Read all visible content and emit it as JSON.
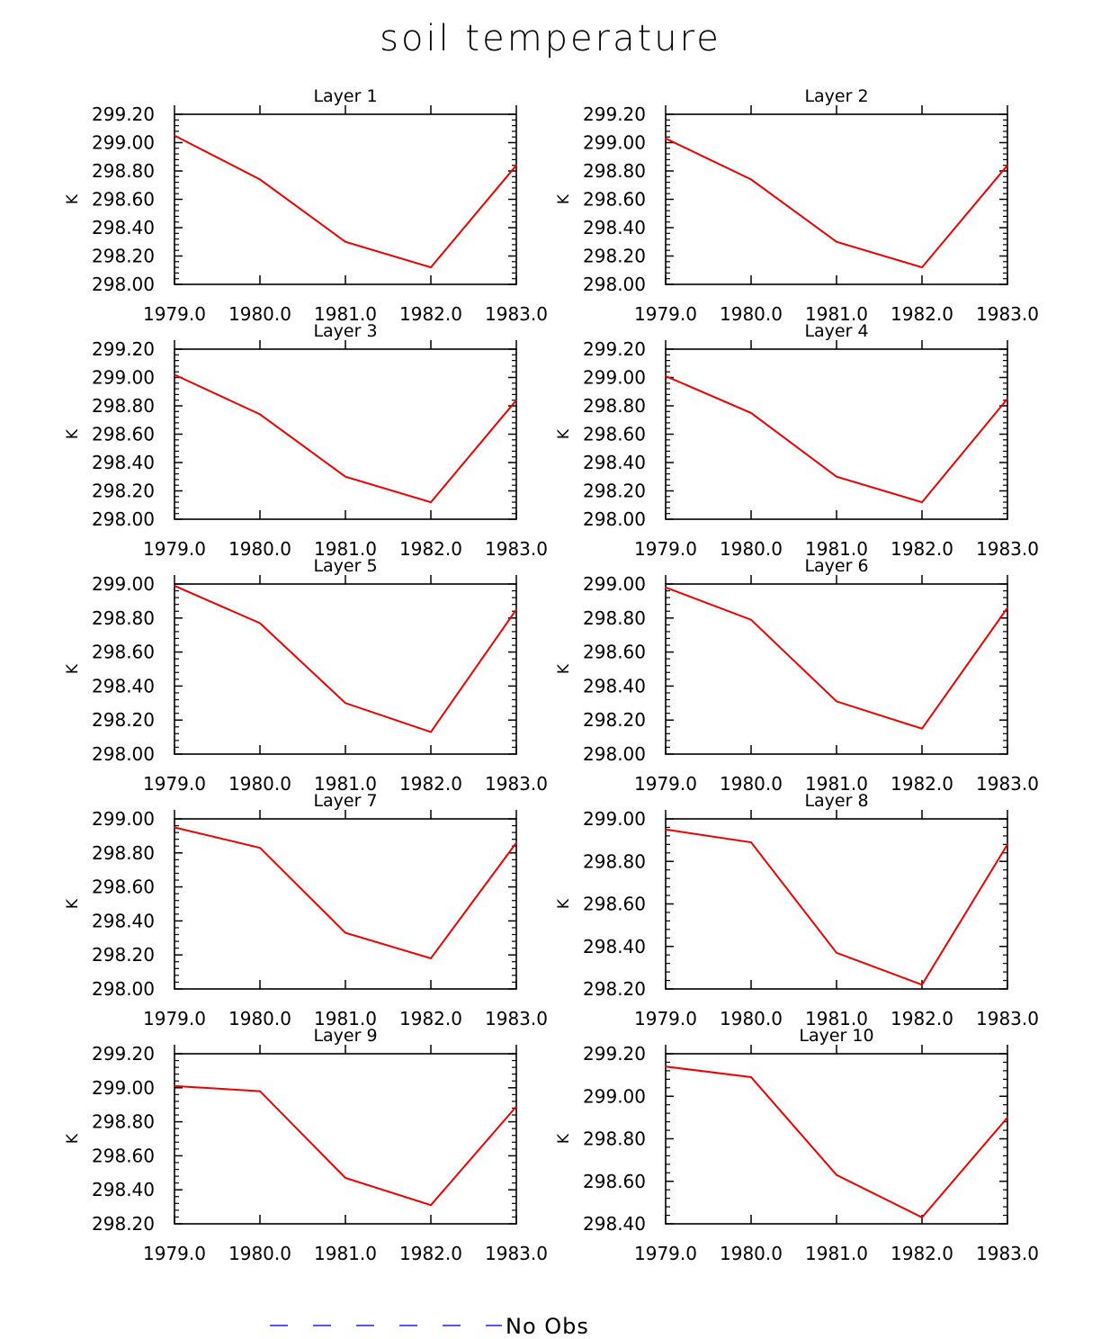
{
  "title": "soil temperature",
  "legend": {
    "label": "No Obs",
    "line_color": "#1a1aff",
    "line_style": "dashed"
  },
  "colors": {
    "series": "#ee0000",
    "axis": "#000000"
  },
  "chart_data": [
    {
      "type": "line",
      "title": "Layer 1",
      "ylabel": "K",
      "xlabel": "",
      "x": [
        1979,
        1980,
        1981,
        1982,
        1983
      ],
      "x_tick_labels": [
        "1979.0",
        "1980.0",
        "1981.0",
        "1982.0",
        "1983.0"
      ],
      "ylim": [
        298.0,
        299.2
      ],
      "y_ticks": [
        "298.00",
        "298.20",
        "298.40",
        "298.60",
        "298.80",
        "299.00",
        "299.20"
      ],
      "series": [
        {
          "name": "soil temperature",
          "values": [
            299.05,
            298.74,
            298.3,
            298.12,
            298.84
          ]
        }
      ]
    },
    {
      "type": "line",
      "title": "Layer 2",
      "ylabel": "K",
      "xlabel": "",
      "x": [
        1979,
        1980,
        1981,
        1982,
        1983
      ],
      "x_tick_labels": [
        "1979.0",
        "1980.0",
        "1981.0",
        "1982.0",
        "1983.0"
      ],
      "ylim": [
        298.0,
        299.2
      ],
      "y_ticks": [
        "298.00",
        "298.20",
        "298.40",
        "298.60",
        "298.80",
        "299.00",
        "299.20"
      ],
      "series": [
        {
          "name": "soil temperature",
          "values": [
            299.03,
            298.74,
            298.3,
            298.12,
            298.84
          ]
        }
      ]
    },
    {
      "type": "line",
      "title": "Layer 3",
      "ylabel": "K",
      "xlabel": "",
      "x": [
        1979,
        1980,
        1981,
        1982,
        1983
      ],
      "x_tick_labels": [
        "1979.0",
        "1980.0",
        "1981.0",
        "1982.0",
        "1983.0"
      ],
      "ylim": [
        298.0,
        299.2
      ],
      "y_ticks": [
        "298.00",
        "298.20",
        "298.40",
        "298.60",
        "298.80",
        "299.00",
        "299.20"
      ],
      "series": [
        {
          "name": "soil temperature",
          "values": [
            299.02,
            298.74,
            298.3,
            298.12,
            298.84
          ]
        }
      ]
    },
    {
      "type": "line",
      "title": "Layer 4",
      "ylabel": "K",
      "xlabel": "",
      "x": [
        1979,
        1980,
        1981,
        1982,
        1983
      ],
      "x_tick_labels": [
        "1979.0",
        "1980.0",
        "1981.0",
        "1982.0",
        "1983.0"
      ],
      "ylim": [
        298.0,
        299.2
      ],
      "y_ticks": [
        "298.00",
        "298.20",
        "298.40",
        "298.60",
        "298.80",
        "299.00",
        "299.20"
      ],
      "series": [
        {
          "name": "soil temperature",
          "values": [
            299.01,
            298.75,
            298.3,
            298.12,
            298.85
          ]
        }
      ]
    },
    {
      "type": "line",
      "title": "Layer 5",
      "ylabel": "K",
      "xlabel": "",
      "x": [
        1979,
        1980,
        1981,
        1982,
        1983
      ],
      "x_tick_labels": [
        "1979.0",
        "1980.0",
        "1981.0",
        "1982.0",
        "1983.0"
      ],
      "ylim": [
        298.0,
        299.0
      ],
      "y_ticks": [
        "298.00",
        "298.20",
        "298.40",
        "298.60",
        "298.80",
        "299.00"
      ],
      "series": [
        {
          "name": "soil temperature",
          "values": [
            298.99,
            298.77,
            298.3,
            298.13,
            298.85
          ]
        }
      ]
    },
    {
      "type": "line",
      "title": "Layer 6",
      "ylabel": "K",
      "xlabel": "",
      "x": [
        1979,
        1980,
        1981,
        1982,
        1983
      ],
      "x_tick_labels": [
        "1979.0",
        "1980.0",
        "1981.0",
        "1982.0",
        "1983.0"
      ],
      "ylim": [
        298.0,
        299.0
      ],
      "y_ticks": [
        "298.00",
        "298.20",
        "298.40",
        "298.60",
        "298.80",
        "299.00"
      ],
      "series": [
        {
          "name": "soil temperature",
          "values": [
            298.98,
            298.79,
            298.31,
            298.15,
            298.86
          ]
        }
      ]
    },
    {
      "type": "line",
      "title": "Layer 7",
      "ylabel": "K",
      "xlabel": "",
      "x": [
        1979,
        1980,
        1981,
        1982,
        1983
      ],
      "x_tick_labels": [
        "1979.0",
        "1980.0",
        "1981.0",
        "1982.0",
        "1983.0"
      ],
      "ylim": [
        298.0,
        299.0
      ],
      "y_ticks": [
        "298.00",
        "298.20",
        "298.40",
        "298.60",
        "298.80",
        "299.00"
      ],
      "series": [
        {
          "name": "soil temperature",
          "values": [
            298.95,
            298.83,
            298.33,
            298.18,
            298.86
          ]
        }
      ]
    },
    {
      "type": "line",
      "title": "Layer 8",
      "ylabel": "K",
      "xlabel": "",
      "x": [
        1979,
        1980,
        1981,
        1982,
        1983
      ],
      "x_tick_labels": [
        "1979.0",
        "1980.0",
        "1981.0",
        "1982.0",
        "1983.0"
      ],
      "ylim": [
        298.2,
        299.0
      ],
      "y_ticks": [
        "298.20",
        "298.40",
        "298.60",
        "298.80",
        "299.00"
      ],
      "series": [
        {
          "name": "soil temperature",
          "values": [
            298.95,
            298.89,
            298.37,
            298.22,
            298.88
          ]
        }
      ]
    },
    {
      "type": "line",
      "title": "Layer 9",
      "ylabel": "K",
      "xlabel": "",
      "x": [
        1979,
        1980,
        1981,
        1982,
        1983
      ],
      "x_tick_labels": [
        "1979.0",
        "1980.0",
        "1981.0",
        "1982.0",
        "1983.0"
      ],
      "ylim": [
        298.2,
        299.2
      ],
      "y_ticks": [
        "298.20",
        "298.40",
        "298.60",
        "298.80",
        "299.00",
        "299.20"
      ],
      "series": [
        {
          "name": "soil temperature",
          "values": [
            299.01,
            298.98,
            298.47,
            298.31,
            298.89
          ]
        }
      ]
    },
    {
      "type": "line",
      "title": "Layer 10",
      "ylabel": "K",
      "xlabel": "",
      "x": [
        1979,
        1980,
        1981,
        1982,
        1983
      ],
      "x_tick_labels": [
        "1979.0",
        "1980.0",
        "1981.0",
        "1982.0",
        "1983.0"
      ],
      "ylim": [
        298.4,
        299.2
      ],
      "y_ticks": [
        "298.40",
        "298.60",
        "298.80",
        "299.00",
        "299.20"
      ],
      "series": [
        {
          "name": "soil temperature",
          "values": [
            299.14,
            299.09,
            298.63,
            298.43,
            298.9
          ]
        }
      ]
    }
  ]
}
